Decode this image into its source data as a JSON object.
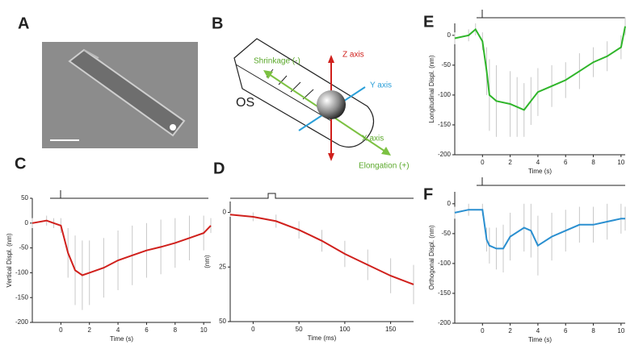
{
  "panel_a": {
    "label": "A"
  },
  "panel_b": {
    "label": "B",
    "os": "OS",
    "z_axis": "Z axis",
    "y_axis": "Y axis",
    "x_axis": "X axis",
    "shrinkage": "Shrinkage (-)",
    "elongation": "Elongation (+)"
  },
  "chart_data": [
    {
      "type": "line",
      "label": "C",
      "ylabel": "Vertical Displ. (nm)",
      "xlabel": "Time (s)",
      "color": "#d0201c",
      "x": [
        -2,
        -1,
        -0.5,
        0,
        0.5,
        1,
        1.5,
        2,
        3,
        4,
        5,
        6,
        7,
        8,
        9,
        10,
        10.5
      ],
      "values": [
        0,
        5,
        0,
        -5,
        -60,
        -95,
        -105,
        -100,
        -90,
        -75,
        -65,
        -55,
        -48,
        -40,
        -30,
        -20,
        -5
      ],
      "errors": [
        10,
        10,
        10,
        15,
        50,
        70,
        70,
        65,
        60,
        60,
        60,
        55,
        55,
        50,
        45,
        35,
        15
      ],
      "xlim": [
        -2,
        10.5
      ],
      "ylim": [
        -200,
        50
      ],
      "xticks": [
        0,
        2,
        4,
        6,
        8,
        10
      ],
      "yticks": [
        50,
        0,
        -50,
        -100,
        -150,
        -200
      ]
    },
    {
      "type": "line",
      "label": "D",
      "ylabel": "(nm)",
      "xlabel": "Time (ms)",
      "color": "#d0201c",
      "x": [
        -25,
        0,
        25,
        50,
        75,
        100,
        125,
        150,
        175
      ],
      "values": [
        1,
        2,
        4,
        8,
        13,
        19,
        24,
        29,
        33
      ],
      "errors": [
        1,
        2,
        3,
        4,
        5,
        6,
        7,
        8,
        9
      ],
      "xlim": [
        -25,
        175
      ],
      "ylim": [
        50,
        -5
      ],
      "xticks": [
        0,
        50,
        100,
        150
      ],
      "yticks": [
        0,
        25,
        50
      ]
    },
    {
      "type": "line",
      "label": "E",
      "ylabel": "Longitudinal Displ. (nm)",
      "xlabel": "Time (s)",
      "color": "#2fb52a",
      "x": [
        -2,
        -1,
        -0.5,
        0,
        0.3,
        0.5,
        1,
        2,
        2.5,
        3,
        3.5,
        4,
        5,
        6,
        7,
        8,
        9,
        10,
        10.3
      ],
      "values": [
        -5,
        0,
        10,
        -10,
        -60,
        -100,
        -110,
        -115,
        -120,
        -125,
        -110,
        -95,
        -85,
        -75,
        -60,
        -45,
        -35,
        -20,
        15
      ],
      "errors": [
        10,
        10,
        10,
        15,
        40,
        60,
        60,
        55,
        50,
        45,
        40,
        40,
        35,
        30,
        30,
        25,
        25,
        20,
        15
      ],
      "xlim": [
        -2,
        10.3
      ],
      "ylim": [
        -200,
        20
      ],
      "xticks": [
        0,
        2,
        4,
        6,
        8,
        10
      ],
      "yticks": [
        0,
        -50,
        -100,
        -150,
        -200
      ]
    },
    {
      "type": "line",
      "label": "F",
      "ylabel": "Orthogonal Displ. (nm)",
      "xlabel": "Time (s)",
      "color": "#2a8fd0",
      "x": [
        -2,
        -1,
        0,
        0.3,
        0.5,
        1,
        1.5,
        2,
        3,
        3.5,
        4,
        5,
        6,
        7,
        8,
        9,
        10,
        10.3
      ],
      "values": [
        -15,
        -10,
        -10,
        -60,
        -70,
        -75,
        -75,
        -55,
        -40,
        -45,
        -70,
        -55,
        -45,
        -35,
        -35,
        -30,
        -25,
        -25
      ],
      "errors": [
        10,
        10,
        10,
        20,
        30,
        35,
        40,
        40,
        40,
        45,
        50,
        40,
        35,
        30,
        30,
        30,
        25,
        20
      ],
      "xlim": [
        -2,
        10.3
      ],
      "ylim": [
        -200,
        20
      ],
      "xticks": [
        0,
        2,
        4,
        6,
        8,
        10
      ],
      "yticks": [
        0,
        -50,
        -100,
        -150,
        -200
      ]
    }
  ]
}
